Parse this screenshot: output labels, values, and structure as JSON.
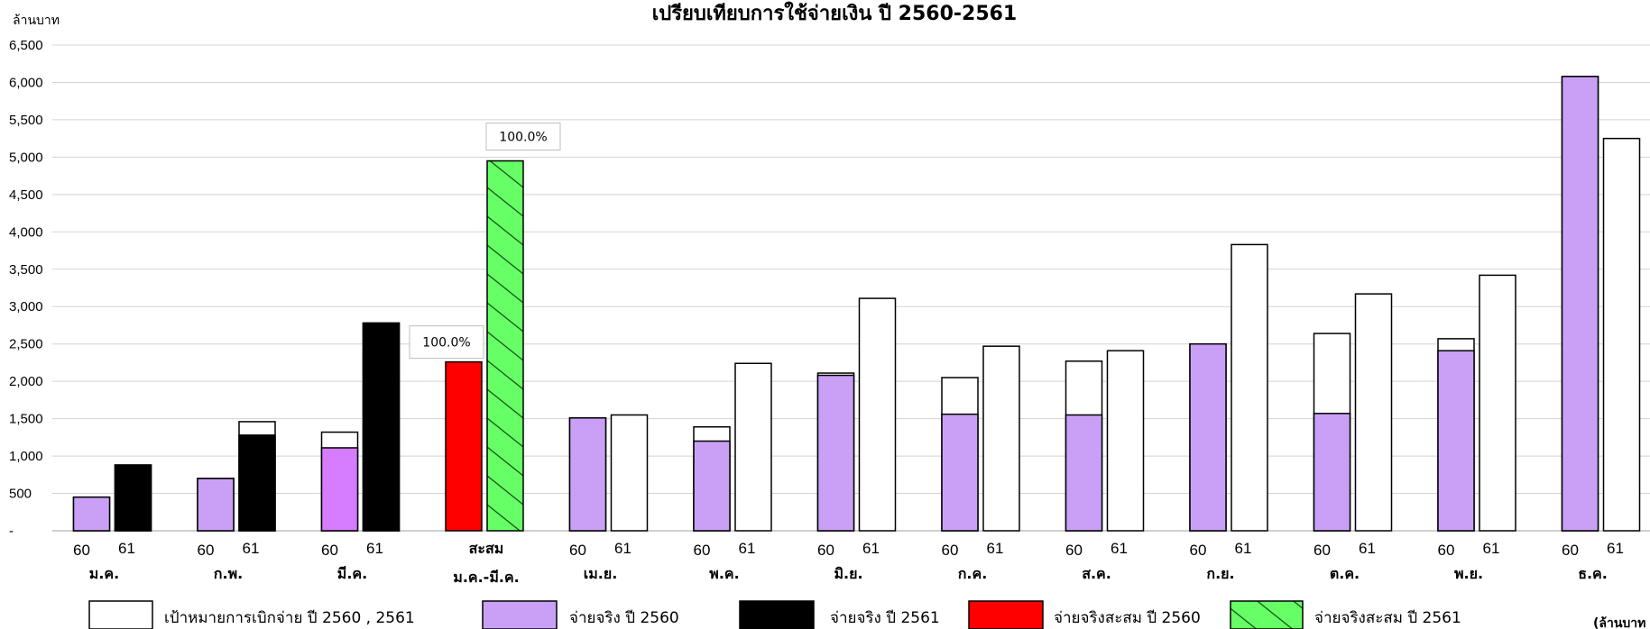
{
  "chart_data": {
    "type": "bar",
    "title": "เปรียบเทียบการใช้จ่ายเงิน ปี 2560-2561",
    "ylabel": "ล้านบาท",
    "unit_note": "(ล้านบาท",
    "ylim": [
      0,
      6500
    ],
    "yticks": [
      0,
      500,
      1000,
      1500,
      2000,
      2500,
      3000,
      3500,
      4000,
      4500,
      5000,
      5500,
      6000,
      6500
    ],
    "ytick_labels": [
      "-",
      "500",
      "1,000",
      "1,500",
      "2,000",
      "2,500",
      "3,000",
      "3,500",
      "4,000",
      "4,500",
      "5,000",
      "5,500",
      "6,000",
      "6,500"
    ],
    "grid": true,
    "legend_position": "bottom",
    "year_labels": [
      "60",
      "61"
    ],
    "colors": {
      "target": "#ffffff",
      "actual_2560": "#c9a0f5",
      "actual_2560_mar": "#d67cff",
      "actual_2561": "#000000",
      "cumulative_2560": "#ff0000",
      "cumulative_2561": "#66ff66"
    },
    "groups": [
      {
        "label": "ม.ค.",
        "target_60": 450,
        "actual_60": 450,
        "target_61": 880,
        "actual_61": 880
      },
      {
        "label": "ก.พ.",
        "target_60": 700,
        "actual_60": 700,
        "target_61": 1460,
        "actual_61": 1280
      },
      {
        "label": "มี.ค.",
        "target_60": 1320,
        "actual_60": 1110,
        "target_61": 2780,
        "actual_61": 2780
      },
      {
        "label": "สะสม",
        "label2": "ม.ค.-มี.ค.",
        "cumulative": true,
        "actual_60": 2260,
        "actual_61": 4950,
        "pct_60": "100.0%",
        "pct_61": "100.0%"
      },
      {
        "label": "เม.ย.",
        "target_60": 1510,
        "actual_60": 1510,
        "target_61": 1550
      },
      {
        "label": "พ.ค.",
        "target_60": 1390,
        "actual_60": 1200,
        "target_61": 2240
      },
      {
        "label": "มิ.ย.",
        "target_60": 2110,
        "actual_60": 2080,
        "target_61": 3110
      },
      {
        "label": "ก.ค.",
        "target_60": 2050,
        "actual_60": 1560,
        "target_61": 2470
      },
      {
        "label": "ส.ค.",
        "target_60": 2270,
        "actual_60": 1550,
        "target_61": 2410
      },
      {
        "label": "ก.ย.",
        "target_60": 2500,
        "actual_60": 2500,
        "target_61": 3830
      },
      {
        "label": "ต.ค.",
        "target_60": 2640,
        "actual_60": 1570,
        "target_61": 3170
      },
      {
        "label": "พ.ย.",
        "target_60": 2570,
        "actual_60": 2410,
        "target_61": 3420
      },
      {
        "label": "ธ.ค.",
        "target_60": 6080,
        "actual_60": 6080,
        "target_61": 5250
      }
    ],
    "legend": [
      {
        "key": "target",
        "label": "เป้าหมายการเบิกจ่าย ปี 2560 , 2561"
      },
      {
        "key": "actual_2560",
        "label": "จ่ายจริง ปี 2560"
      },
      {
        "key": "actual_2561",
        "label": "จ่ายจริง ปี 2561"
      },
      {
        "key": "cumulative_2560",
        "label": "จ่ายจริงสะสม ปี 2560"
      },
      {
        "key": "cumulative_2561",
        "label": "จ่ายจริงสะสม ปี 2561"
      }
    ]
  }
}
